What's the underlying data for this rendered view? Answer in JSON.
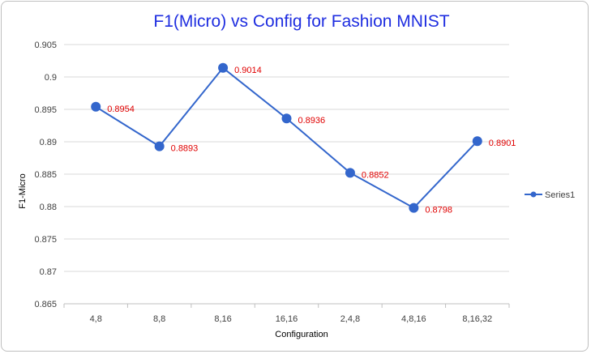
{
  "colors": {
    "title": "#1f2ee0",
    "series": "#3366cc",
    "data_label": "#e00000",
    "grid": "#d9d9d9"
  },
  "chart_data": {
    "type": "line",
    "title": "F1(Micro) vs Config for Fashion MNIST",
    "xlabel": "Configuration",
    "ylabel": "F1-Micro",
    "categories": [
      "4,8",
      "8,8",
      "8,16",
      "16,16",
      "2,4,8",
      "4,8,16",
      "8,16,32"
    ],
    "series": [
      {
        "name": "Series1",
        "values": [
          0.8954,
          0.8893,
          0.9014,
          0.8936,
          0.8852,
          0.8798,
          0.8901
        ],
        "data_labels": [
          "0.8954",
          "0.8893",
          "0.9014",
          "0.8936",
          "0.8852",
          "0.8798",
          "0.8901"
        ]
      }
    ],
    "ylim": [
      0.865,
      0.905
    ],
    "yticks": [
      "0.865",
      "0.87",
      "0.875",
      "0.88",
      "0.885",
      "0.89",
      "0.895",
      "0.9",
      "0.905"
    ],
    "ytick_values": [
      0.865,
      0.87,
      0.875,
      0.88,
      0.885,
      0.89,
      0.895,
      0.9,
      0.905
    ],
    "grid": true,
    "legend_position": "right"
  }
}
